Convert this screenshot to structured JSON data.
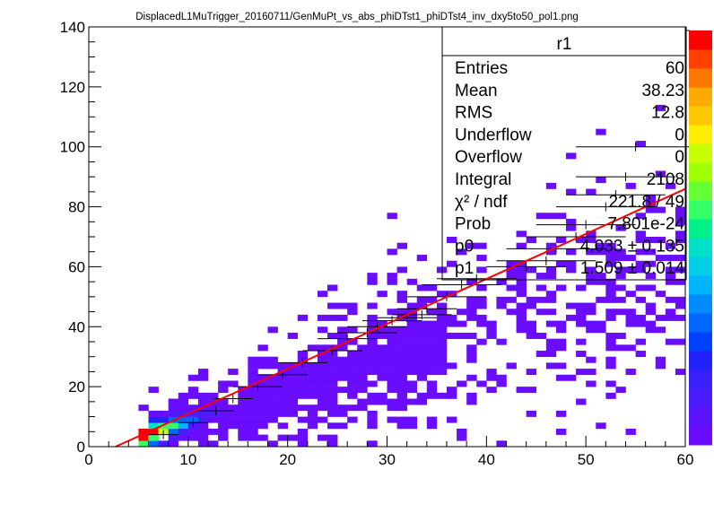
{
  "title": "DisplacedL1MuTrigger_20160711/GenMuPt_vs_abs_phiDTst1_phiDTst4_inv_dxy5to50_pol1.png",
  "stats_box": {
    "name": "r1",
    "rows": [
      {
        "label": "Entries",
        "value": "60"
      },
      {
        "label": "Mean",
        "value": "38.23"
      },
      {
        "label": "RMS",
        "value": "12.8"
      },
      {
        "label": "Underflow",
        "value": "0"
      },
      {
        "label": "Overflow",
        "value": "0"
      },
      {
        "label": "Integral",
        "value": "2108"
      },
      {
        "label": "χ² / ndf",
        "value": "221.8 / 49"
      },
      {
        "label": "Prob",
        "value": "7.801e-24"
      },
      {
        "label": "p0",
        "value": "4.033 ± 0.135"
      },
      {
        "label": "p1",
        "value": "1.509 ± 0.014"
      }
    ]
  },
  "chart_data": {
    "type": "heatmap",
    "xlim": [
      0,
      60
    ],
    "ylim": [
      0,
      140
    ],
    "x_ticks": [
      0,
      10,
      20,
      30,
      40,
      50,
      60
    ],
    "y_ticks": [
      0,
      20,
      40,
      60,
      80,
      100,
      120,
      140
    ],
    "bin_width_x": 1,
    "bin_height_y": 2,
    "fit_line": {
      "p0": 4.033,
      "p1": 1.509
    },
    "profile_points": [
      {
        "y": 4,
        "x": 7.5,
        "ex": 1.5
      },
      {
        "y": 8,
        "x": 10.5,
        "ex": 1.5
      },
      {
        "y": 12,
        "x": 12.8,
        "ex": 1.8
      },
      {
        "y": 16,
        "x": 14.5,
        "ex": 2
      },
      {
        "y": 20,
        "x": 17,
        "ex": 2.5
      },
      {
        "y": 24,
        "x": 19.5,
        "ex": 2.5
      },
      {
        "y": 28,
        "x": 21.5,
        "ex": 2.5
      },
      {
        "y": 32,
        "x": 24.5,
        "ex": 3
      },
      {
        "y": 36,
        "x": 26,
        "ex": 3
      },
      {
        "y": 38,
        "x": 28,
        "ex": 3
      },
      {
        "y": 40,
        "x": 29,
        "ex": 3
      },
      {
        "y": 42,
        "x": 30.5,
        "ex": 3
      },
      {
        "y": 43,
        "x": 32,
        "ex": 3
      },
      {
        "y": 44,
        "x": 33.5,
        "ex": 3
      },
      {
        "y": 46,
        "x": 34,
        "ex": 3
      },
      {
        "y": 50,
        "x": 36,
        "ex": 4
      },
      {
        "y": 54,
        "x": 37.5,
        "ex": 4
      },
      {
        "y": 56,
        "x": 39,
        "ex": 4
      },
      {
        "y": 60,
        "x": 44,
        "ex": 4
      },
      {
        "y": 62,
        "x": 46,
        "ex": 5
      },
      {
        "y": 66,
        "x": 47,
        "ex": 5
      },
      {
        "y": 70,
        "x": 49,
        "ex": 5
      },
      {
        "y": 74,
        "x": 50,
        "ex": 5
      },
      {
        "y": 80,
        "x": 52,
        "ex": 5
      },
      {
        "y": 84,
        "x": 53,
        "ex": 5
      },
      {
        "y": 90,
        "x": 54,
        "ex": 5
      },
      {
        "y": 100,
        "x": 55,
        "ex": 6
      }
    ]
  }
}
